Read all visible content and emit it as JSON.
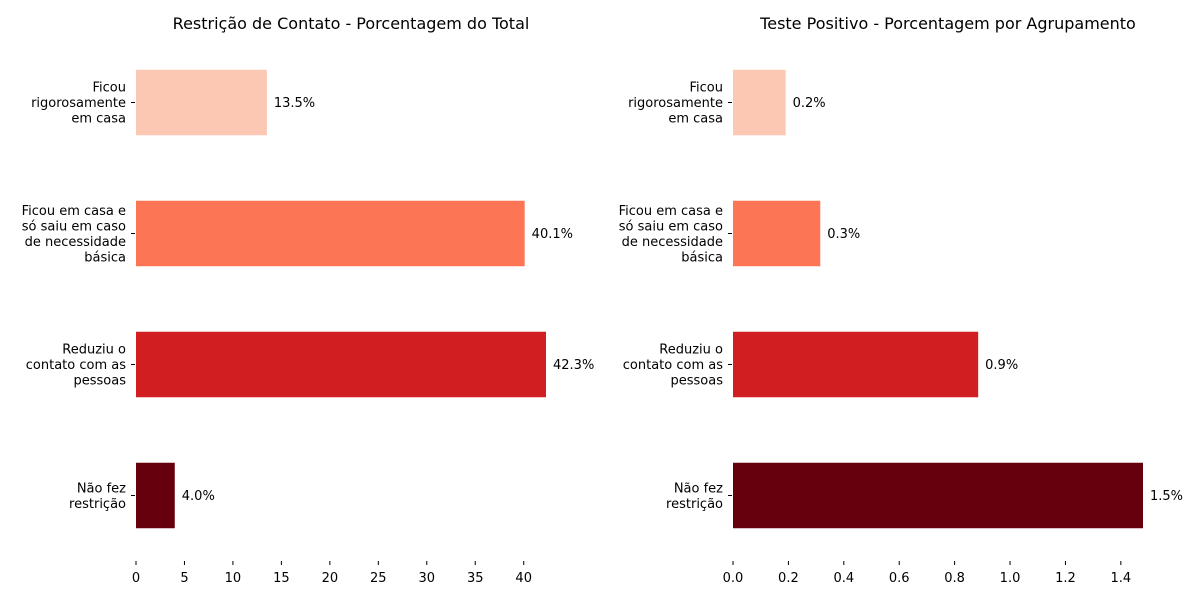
{
  "chart_data": [
    {
      "type": "bar",
      "orientation": "horizontal",
      "title": "Restrição de Contato - Porcentagem do Total",
      "categories": [
        [
          "Ficou",
          "rigorosamente",
          "em casa"
        ],
        [
          "Ficou em casa e",
          "só saiu em caso",
          "de necessidade",
          "básica"
        ],
        [
          "Reduziu o",
          "contato com as",
          "pessoas"
        ],
        [
          "Não fez",
          "restrição"
        ]
      ],
      "values": [
        13.5,
        40.1,
        42.3,
        4.0
      ],
      "value_labels": [
        "13.5%",
        "40.1%",
        "42.3%",
        "4.0%"
      ],
      "colors": [
        "#fcc8b4",
        "#fc7656",
        "#d11e20",
        "#67000d"
      ],
      "xticks": [
        0,
        5,
        10,
        15,
        20,
        25,
        30,
        35,
        40
      ],
      "xtick_labels": [
        "0",
        "5",
        "10",
        "15",
        "20",
        "25",
        "30",
        "35",
        "40"
      ],
      "xlim": [
        0,
        42.3
      ],
      "xlabel": "",
      "ylabel": "",
      "grid": false
    },
    {
      "type": "bar",
      "orientation": "horizontal",
      "title": "Teste Positivo - Porcentagem por Agrupamento",
      "categories": [
        [
          "Ficou",
          "rigorosamente",
          "em casa"
        ],
        [
          "Ficou em casa e",
          "só saiu em caso",
          "de necessidade",
          "básica"
        ],
        [
          "Reduziu o",
          "contato com as",
          "pessoas"
        ],
        [
          "Não fez",
          "restrição"
        ]
      ],
      "values": [
        0.19,
        0.315,
        0.885,
        1.48
      ],
      "value_labels": [
        "0.2%",
        "0.3%",
        "0.9%",
        "1.5%"
      ],
      "colors": [
        "#fcc8b4",
        "#fc7656",
        "#d11e20",
        "#67000d"
      ],
      "xticks": [
        0.0,
        0.2,
        0.4,
        0.6,
        0.8,
        1.0,
        1.2,
        1.4
      ],
      "xtick_labels": [
        "0.0",
        "0.2",
        "0.4",
        "0.6",
        "0.8",
        "1.0",
        "1.2",
        "1.4"
      ],
      "xlim": [
        0,
        1.48
      ],
      "xlabel": "",
      "ylabel": "",
      "grid": false
    }
  ]
}
